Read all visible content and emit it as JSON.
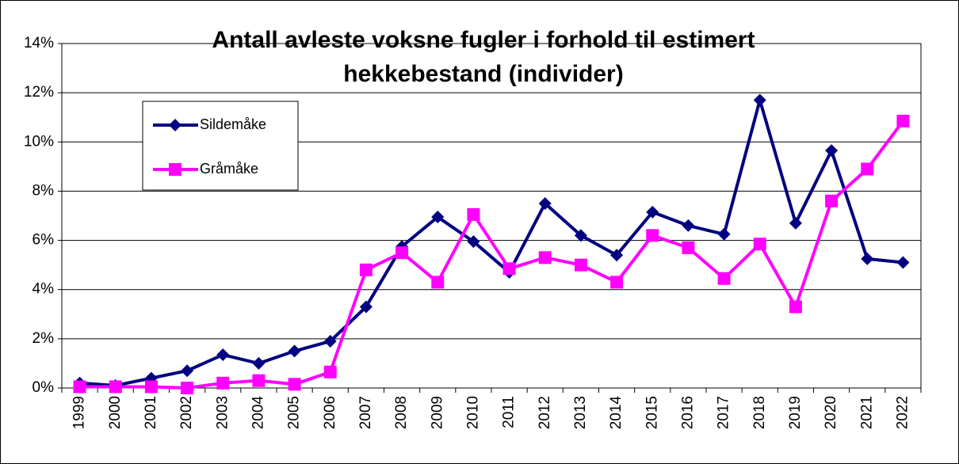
{
  "chart_data": {
    "type": "line",
    "title": [
      "Antall avleste voksne fugler i forhold til estimert",
      "hekkebestand (individer)"
    ],
    "categories": [
      "1999",
      "2000",
      "2001",
      "2002",
      "2003",
      "2004",
      "2005",
      "2006",
      "2007",
      "2008",
      "2009",
      "2010",
      "2011",
      "2012",
      "2013",
      "2014",
      "2015",
      "2016",
      "2017",
      "2018",
      "2019",
      "2020",
      "2021",
      "2022"
    ],
    "series": [
      {
        "name": "Sildemåke",
        "color": "#000080",
        "marker": "diamond",
        "values": [
          0.2,
          0.1,
          0.4,
          0.7,
          1.35,
          1.0,
          1.5,
          1.9,
          3.3,
          5.75,
          6.95,
          5.95,
          4.7,
          7.5,
          6.2,
          5.4,
          7.15,
          6.6,
          6.25,
          11.7,
          6.7,
          9.65,
          5.25,
          5.1
        ]
      },
      {
        "name": "Gråmåke",
        "color": "#ff00ff",
        "marker": "square",
        "values": [
          0.05,
          0.05,
          0.05,
          0.0,
          0.2,
          0.3,
          0.15,
          0.65,
          4.8,
          5.5,
          4.3,
          7.05,
          4.85,
          5.3,
          5.0,
          4.3,
          6.2,
          5.7,
          4.45,
          5.85,
          3.3,
          7.6,
          8.9,
          10.85
        ]
      }
    ],
    "ylim": [
      0,
      14
    ],
    "yticks": [
      {
        "value": 0,
        "label": "0%"
      },
      {
        "value": 2,
        "label": "2%"
      },
      {
        "value": 4,
        "label": "4%"
      },
      {
        "value": 6,
        "label": "6%"
      },
      {
        "value": 8,
        "label": "8%"
      },
      {
        "value": 10,
        "label": "10%"
      },
      {
        "value": 12,
        "label": "12%"
      },
      {
        "value": 14,
        "label": "14%"
      }
    ],
    "grid": true,
    "legend": "upper-left"
  }
}
